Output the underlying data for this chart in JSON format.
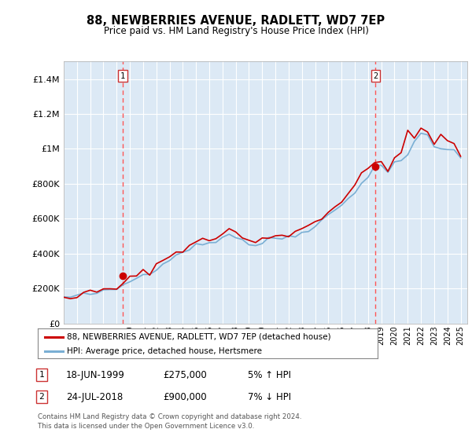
{
  "title": "88, NEWBERRIES AVENUE, RADLETT, WD7 7EP",
  "subtitle": "Price paid vs. HM Land Registry's House Price Index (HPI)",
  "bg_color": "#dce9f5",
  "y_ticks": [
    0,
    200000,
    400000,
    600000,
    800000,
    1000000,
    1200000,
    1400000
  ],
  "y_tick_labels": [
    "£0",
    "£200K",
    "£400K",
    "£600K",
    "£800K",
    "£1M",
    "£1.2M",
    "£1.4M"
  ],
  "ylim": [
    0,
    1500000
  ],
  "xlim_start": 1995.0,
  "xlim_end": 2025.5,
  "sale1_date": 1999.46,
  "sale1_price": 275000,
  "sale2_date": 2018.56,
  "sale2_price": 900000,
  "line_color_red": "#cc0000",
  "line_color_blue": "#7aafd4",
  "grid_color": "#ffffff",
  "vline_color": "#ff5555",
  "legend_label_red": "88, NEWBERRIES AVENUE, RADLETT, WD7 7EP (detached house)",
  "legend_label_blue": "HPI: Average price, detached house, Hertsmere",
  "annotation1_label": "1",
  "annotation1_date_str": "18-JUN-1999",
  "annotation1_price_str": "£275,000",
  "annotation1_pct": "5% ↑ HPI",
  "annotation2_label": "2",
  "annotation2_date_str": "24-JUL-2018",
  "annotation2_price_str": "£900,000",
  "annotation2_pct": "7% ↓ HPI",
  "footer": "Contains HM Land Registry data © Crown copyright and database right 2024.\nThis data is licensed under the Open Government Licence v3.0.",
  "hpi_x": [
    1995.0,
    1995.5,
    1996.0,
    1996.5,
    1997.0,
    1997.5,
    1998.0,
    1998.5,
    1999.0,
    1999.5,
    2000.0,
    2000.5,
    2001.0,
    2001.5,
    2002.0,
    2002.5,
    2003.0,
    2003.5,
    2004.0,
    2004.5,
    2005.0,
    2005.5,
    2006.0,
    2006.5,
    2007.0,
    2007.5,
    2008.0,
    2008.5,
    2009.0,
    2009.5,
    2010.0,
    2010.5,
    2011.0,
    2011.5,
    2012.0,
    2012.5,
    2013.0,
    2013.5,
    2014.0,
    2014.5,
    2015.0,
    2015.5,
    2016.0,
    2016.5,
    2017.0,
    2017.5,
    2018.0,
    2018.5,
    2019.0,
    2019.5,
    2020.0,
    2020.5,
    2021.0,
    2021.5,
    2022.0,
    2022.5,
    2023.0,
    2023.5,
    2024.0,
    2024.5,
    2025.0
  ],
  "hpi_y": [
    148000,
    151000,
    157000,
    162000,
    168000,
    174000,
    180000,
    188000,
    198000,
    218000,
    242000,
    262000,
    278000,
    296000,
    318000,
    345000,
    368000,
    390000,
    415000,
    432000,
    445000,
    452000,
    462000,
    475000,
    498000,
    510000,
    500000,
    478000,
    455000,
    448000,
    462000,
    478000,
    488000,
    492000,
    496000,
    505000,
    520000,
    542000,
    565000,
    592000,
    618000,
    648000,
    678000,
    718000,
    758000,
    808000,
    848000,
    878000,
    898000,
    908000,
    918000,
    942000,
    982000,
    1028000,
    1065000,
    1058000,
    1032000,
    1008000,
    988000,
    972000,
    960000
  ],
  "price_x": [
    1995.0,
    1995.5,
    1996.0,
    1996.5,
    1997.0,
    1997.5,
    1998.0,
    1998.5,
    1999.0,
    1999.5,
    2000.0,
    2000.5,
    2001.0,
    2001.5,
    2002.0,
    2002.5,
    2003.0,
    2003.5,
    2004.0,
    2004.5,
    2005.0,
    2005.5,
    2006.0,
    2006.5,
    2007.0,
    2007.5,
    2008.0,
    2008.5,
    2009.0,
    2009.5,
    2010.0,
    2010.5,
    2011.0,
    2011.5,
    2012.0,
    2012.5,
    2013.0,
    2013.5,
    2014.0,
    2014.5,
    2015.0,
    2015.5,
    2016.0,
    2016.5,
    2017.0,
    2017.5,
    2018.0,
    2018.5,
    2019.0,
    2019.5,
    2020.0,
    2020.5,
    2021.0,
    2021.5,
    2022.0,
    2022.5,
    2023.0,
    2023.5,
    2024.0,
    2024.5,
    2025.0
  ],
  "price_y": [
    152000,
    155000,
    162000,
    168000,
    174000,
    180000,
    186000,
    194000,
    204000,
    226000,
    252000,
    272000,
    290000,
    308000,
    332000,
    360000,
    385000,
    408000,
    432000,
    450000,
    463000,
    470000,
    480000,
    495000,
    518000,
    532000,
    520000,
    496000,
    470000,
    462000,
    478000,
    496000,
    506000,
    510000,
    514000,
    524000,
    540000,
    562000,
    586000,
    614000,
    642000,
    672000,
    704000,
    746000,
    788000,
    840000,
    882000,
    912000,
    930000,
    940000,
    950000,
    976000,
    1018000,
    1068000,
    1108000,
    1098000,
    1068000,
    1042000,
    1020000,
    1002000,
    990000
  ]
}
